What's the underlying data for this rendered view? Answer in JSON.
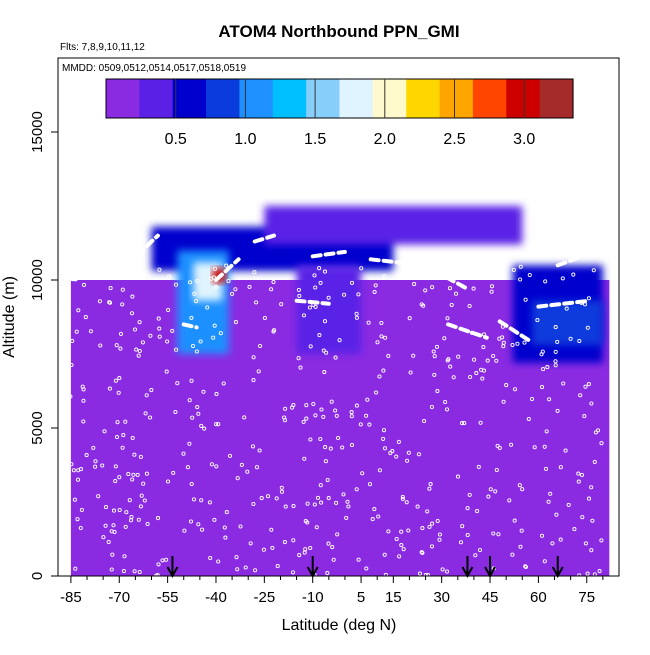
{
  "chart_data": {
    "type": "heatmap",
    "title": "ATOM4 Northbound PPN_GMI",
    "flights_text": "Flts: 7,8,9,10,11,12",
    "mmdd_text": "MMDD: 0509,0512,0514,0517,0518,0519",
    "xlabel": "Latitude (deg N)",
    "ylabel": "Altitude (m)",
    "xlim": [
      -89,
      85
    ],
    "ylim": [
      0,
      17500
    ],
    "x_ticks": [
      -85,
      -70,
      -55,
      -40,
      -25,
      -10,
      5,
      15,
      30,
      45,
      60,
      75
    ],
    "x_tick_labels": [
      "-85",
      "-70",
      "-55",
      "-40",
      "-25",
      "-10",
      "5",
      "15",
      "30",
      "45",
      "60",
      "75"
    ],
    "y_ticks": [
      0,
      5000,
      10000,
      15000
    ],
    "y_tick_labels": [
      "0",
      "5000",
      "10000",
      "15000"
    ],
    "colorbar": {
      "range": [
        0,
        3.35
      ],
      "ticks": [
        0.5,
        1.0,
        1.5,
        2.0,
        2.5,
        3.0
      ],
      "tick_labels": [
        "0.5",
        "1.0",
        "1.5",
        "2.0",
        "2.5",
        "3.0"
      ],
      "colors": [
        "#8a2be2",
        "#5a20e6",
        "#0000cd",
        "#0a3bdc",
        "#1e90ff",
        "#00bfff",
        "#87cefa",
        "#e0f4ff",
        "#fffacd",
        "#ffd700",
        "#ffa500",
        "#ff4500",
        "#cd0000",
        "#a52a2a"
      ]
    },
    "arrow_latitudes": [
      -53.5,
      -10,
      38,
      45,
      66
    ],
    "regions": [
      {
        "name": "background",
        "x": [
          -85,
          82
        ],
        "y": [
          0,
          10000
        ],
        "value": 0.0
      },
      {
        "name": "south-upper-band",
        "x": [
          -60,
          15
        ],
        "y": [
          10300,
          11800
        ],
        "value": 0.5
      },
      {
        "name": "north-upper-band",
        "x": [
          -25,
          55
        ],
        "y": [
          11200,
          12500
        ],
        "value": 0.45
      },
      {
        "name": "south-plume",
        "x": [
          -52,
          -36
        ],
        "y": [
          7500,
          11000
        ],
        "value": 1.1
      },
      {
        "name": "south-plume-core",
        "x": [
          -47,
          -38
        ],
        "y": [
          9300,
          10600
        ],
        "value": 1.7
      },
      {
        "name": "hotspot",
        "x": [
          -41,
          -37
        ],
        "y": [
          9900,
          10400
        ],
        "value": 3.0
      },
      {
        "name": "north-plume",
        "x": [
          52,
          80
        ],
        "y": [
          7200,
          10500
        ],
        "value": 0.6
      },
      {
        "name": "north-plume-core",
        "x": [
          58,
          80
        ],
        "y": [
          7800,
          9300
        ],
        "value": 0.9
      },
      {
        "name": "mid-tongue",
        "x": [
          -15,
          5
        ],
        "y": [
          7500,
          10500
        ],
        "value": 0.35
      }
    ]
  }
}
